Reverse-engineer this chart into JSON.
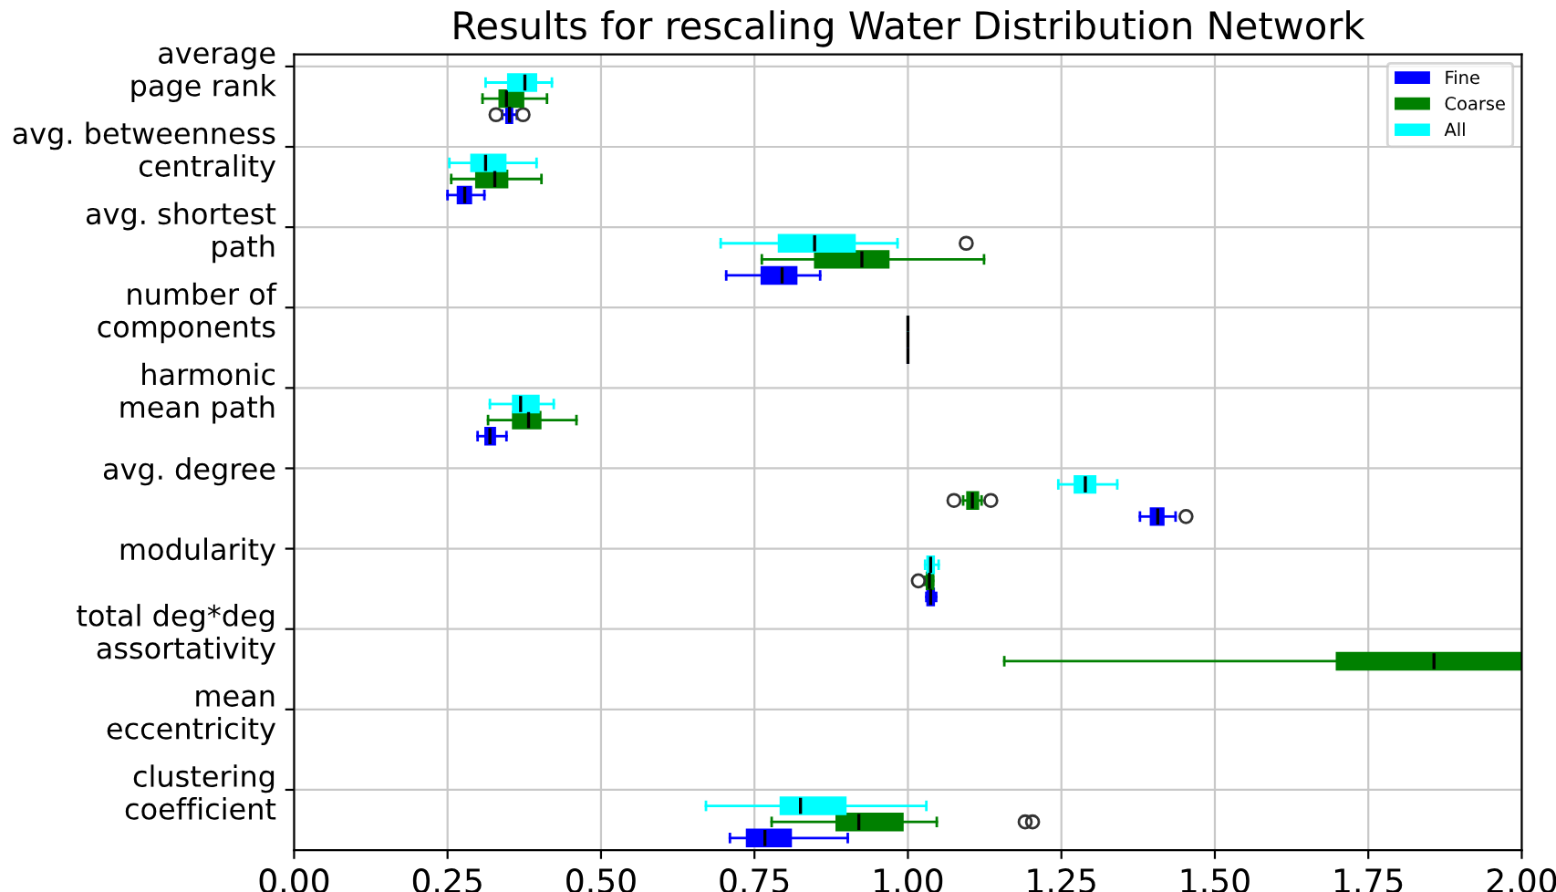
{
  "chart_data": {
    "type": "box",
    "orientation": "horizontal",
    "title": "Results for rescaling Water Distribution Network",
    "categories": [
      "average\npage rank",
      "avg. betweenness\ncentrality",
      "avg. shortest\npath",
      "number of\ncomponents",
      "harmonic\nmean path",
      "avg. degree",
      "modularity",
      "total deg*deg\nassortativity",
      "mean\neccentricity",
      "clustering\ncoefficient"
    ],
    "xlim": [
      0,
      2
    ],
    "xticks": [
      {
        "value": 0,
        "label": "0.00"
      },
      {
        "value": 0.25,
        "label": "0.25"
      },
      {
        "value": 0.5,
        "label": "0.50"
      },
      {
        "value": 0.75,
        "label": "0.75"
      },
      {
        "value": 1,
        "label": "1.00"
      },
      {
        "value": 1.25,
        "label": "1.25"
      },
      {
        "value": 1.5,
        "label": "1.50"
      },
      {
        "value": 1.75,
        "label": "1.75"
      },
      {
        "value": 2,
        "label": "2.00"
      }
    ],
    "grid": true,
    "legend": "top right",
    "series": [
      {
        "name": "Fine",
        "color": "#0000ff",
        "boxes": [
          {
            "low": 0.339,
            "q1": 0.346,
            "median": 0.351,
            "q3": 0.355,
            "high": 0.363,
            "outliers": [
              0.329,
              0.373
            ]
          },
          {
            "low": 0.25,
            "q1": 0.267,
            "median": 0.278,
            "q3": 0.288,
            "high": 0.31
          },
          {
            "low": 0.704,
            "q1": 0.762,
            "median": 0.795,
            "q3": 0.818,
            "high": 0.857
          },
          {
            "low": 1.0,
            "q1": 1.0,
            "median": 1.0,
            "q3": 1.0,
            "high": 1.0
          },
          {
            "low": 0.299,
            "q1": 0.312,
            "median": 0.319,
            "q3": 0.327,
            "high": 0.346
          },
          {
            "low": 1.378,
            "q1": 1.396,
            "median": 1.407,
            "q3": 1.416,
            "high": 1.436,
            "outliers": [
              1.453
            ]
          },
          {
            "low": 1.03,
            "q1": 1.032,
            "median": 1.037,
            "q3": 1.042,
            "high": 1.046
          },
          null,
          null,
          {
            "low": 0.71,
            "q1": 0.738,
            "median": 0.767,
            "q3": 0.809,
            "high": 0.902
          }
        ]
      },
      {
        "name": "Coarse",
        "color": "#008000",
        "boxes": [
          {
            "low": 0.307,
            "q1": 0.335,
            "median": 0.346,
            "q3": 0.373,
            "high": 0.412
          },
          {
            "low": 0.256,
            "q1": 0.297,
            "median": 0.327,
            "q3": 0.347,
            "high": 0.403
          },
          {
            "low": 0.762,
            "q1": 0.849,
            "median": 0.925,
            "q3": 0.968,
            "high": 1.124
          },
          {
            "low": 1.0,
            "q1": 1.0,
            "median": 1.0,
            "q3": 1.0,
            "high": 1.0
          },
          {
            "low": 0.316,
            "q1": 0.357,
            "median": 0.382,
            "q3": 0.401,
            "high": 0.46
          },
          {
            "low": 1.09,
            "q1": 1.097,
            "median": 1.105,
            "q3": 1.114,
            "high": 1.12,
            "outliers": [
              1.075,
              1.135
            ]
          },
          {
            "low": 1.028,
            "q1": 1.031,
            "median": 1.035,
            "q3": 1.041,
            "high": 1.041,
            "outliers": [
              1.017
            ]
          },
          {
            "low": 1.157,
            "q1": 1.699,
            "median": 1.857,
            "q3": 2.0,
            "high": 2.0
          },
          null,
          {
            "low": 0.778,
            "q1": 0.884,
            "median": 0.92,
            "q3": 0.991,
            "high": 1.047,
            "outliers": [
              1.191,
              1.203
            ]
          }
        ]
      },
      {
        "name": "All",
        "color": "#00ffff",
        "boxes": [
          {
            "low": 0.312,
            "q1": 0.349,
            "median": 0.376,
            "q3": 0.394,
            "high": 0.42
          },
          {
            "low": 0.253,
            "q1": 0.289,
            "median": 0.312,
            "q3": 0.344,
            "high": 0.395
          },
          {
            "low": 0.695,
            "q1": 0.79,
            "median": 0.848,
            "q3": 0.913,
            "high": 0.983,
            "outliers": [
              1.095
            ]
          },
          {
            "low": 1.0,
            "q1": 1.0,
            "median": 1.0,
            "q3": 1.0,
            "high": 1.0
          },
          {
            "low": 0.319,
            "q1": 0.357,
            "median": 0.369,
            "q3": 0.398,
            "high": 0.423
          },
          {
            "low": 1.245,
            "q1": 1.272,
            "median": 1.289,
            "q3": 1.305,
            "high": 1.341
          },
          {
            "low": 1.028,
            "q1": 1.032,
            "median": 1.037,
            "q3": 1.042,
            "high": 1.05
          },
          null,
          null,
          {
            "low": 0.671,
            "q1": 0.793,
            "median": 0.825,
            "q3": 0.898,
            "high": 1.03
          }
        ]
      }
    ]
  }
}
